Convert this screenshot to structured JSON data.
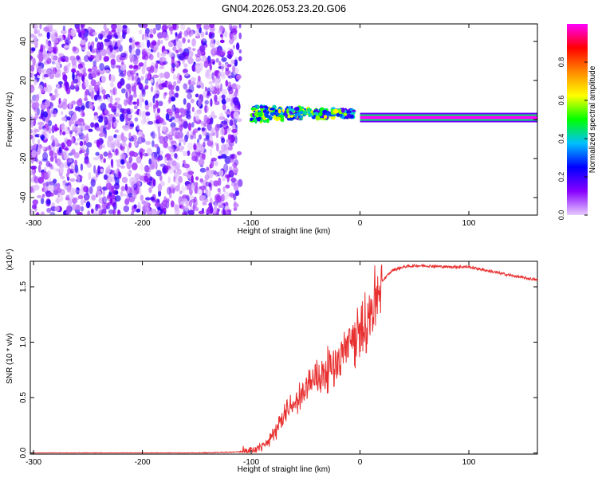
{
  "title": "GN04.2026.053.23.20.G06",
  "chart_data": [
    {
      "type": "heatmap",
      "title": "GN04.2026.053.23.20.G06",
      "xlabel": "Height of straight line (km)",
      "ylabel": "Frequency (Hz)",
      "xlim": [
        -303,
        163
      ],
      "ylim": [
        -49,
        49
      ],
      "xticks": [
        -300,
        -200,
        -100,
        0,
        100
      ],
      "yticks": [
        -40,
        -20,
        0,
        20,
        40
      ],
      "colorbar": {
        "label": "Normalized spectral amplitude",
        "ticks": [
          0.0,
          0.2,
          0.4,
          0.6,
          0.8
        ],
        "range": [
          0,
          1
        ],
        "colors": [
          "#e6ccff",
          "#8800ff",
          "#0000ff",
          "#00bfff",
          "#00ff00",
          "#ffff00",
          "#ff8800",
          "#ff0000",
          "#ff00ff"
        ]
      },
      "regions": [
        {
          "x_range": [
            -303,
            -110
          ],
          "frequency_range": [
            -49,
            49
          ],
          "amplitude": "low, broadband noise"
        },
        {
          "x_range": [
            -100,
            -5
          ],
          "frequency_center": 3,
          "frequency_spread": 4,
          "amplitude": "medium to high"
        },
        {
          "x_range": [
            0,
            163
          ],
          "frequency_center": 1,
          "amplitude": 1.0
        }
      ]
    },
    {
      "type": "line",
      "xlabel": "Height of straight line (km)",
      "ylabel": "SNR (10 * v/v)",
      "y_multiplier": "(x10⁴)",
      "xlim": [
        -303,
        163
      ],
      "ylim": [
        -0.01,
        1.73
      ],
      "xticks": [
        -300,
        -200,
        -100,
        0,
        100
      ],
      "yticks": [
        0.0,
        0.5,
        1.0,
        1.5
      ],
      "color": "#e83030",
      "x": [
        -303,
        -250,
        -200,
        -150,
        -110,
        -100,
        -90,
        -80,
        -70,
        -60,
        -50,
        -40,
        -30,
        -20,
        -10,
        0,
        10,
        20,
        30,
        40,
        50,
        60,
        80,
        100,
        110,
        120,
        140,
        163
      ],
      "y": [
        0.0,
        0.0,
        0.0,
        0.0,
        0.01,
        0.02,
        0.06,
        0.15,
        0.33,
        0.45,
        0.6,
        0.67,
        0.75,
        0.85,
        1.0,
        1.05,
        1.3,
        1.55,
        1.65,
        1.68,
        1.69,
        1.69,
        1.68,
        1.68,
        1.66,
        1.64,
        1.6,
        1.56
      ]
    }
  ]
}
